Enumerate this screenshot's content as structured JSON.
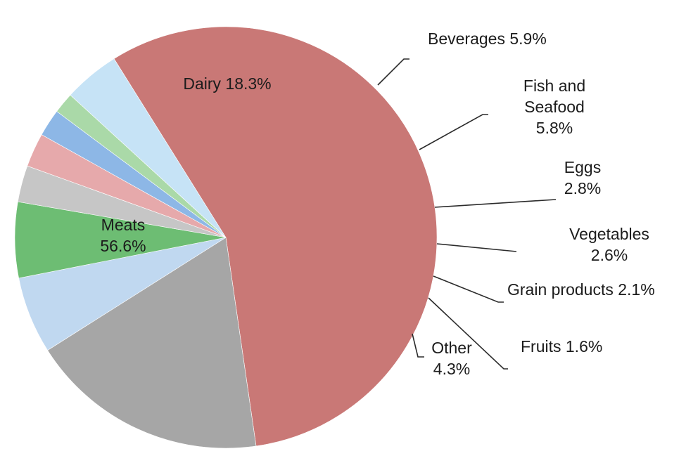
{
  "chart_data": {
    "type": "pie",
    "start_angle_deg": -122,
    "direction": "clockwise",
    "slices": [
      {
        "name": "Meats",
        "value": 56.6,
        "color": "#c97876",
        "label_lines": [
          "Meats",
          "56.6%"
        ]
      },
      {
        "name": "Dairy",
        "value": 18.3,
        "color": "#a6a6a6",
        "label_lines": [
          "Dairy 18.3%"
        ]
      },
      {
        "name": "Beverages",
        "value": 5.9,
        "color": "#c0d8f0",
        "label_lines": [
          "Beverages 5.9%"
        ]
      },
      {
        "name": "Fish and Seafood",
        "value": 5.8,
        "color": "#6dbd73",
        "label_lines": [
          "Fish and",
          "Seafood",
          "5.8%"
        ]
      },
      {
        "name": "Eggs",
        "value": 2.8,
        "color": "#c6c6c6",
        "label_lines": [
          "Eggs",
          "2.8%"
        ]
      },
      {
        "name": "Vegetables",
        "value": 2.6,
        "color": "#e6a9ab",
        "label_lines": [
          "Vegetables",
          "2.6%"
        ]
      },
      {
        "name": "Grain products",
        "value": 2.1,
        "color": "#8db7e6",
        "label_lines": [
          "Grain products 2.1%"
        ]
      },
      {
        "name": "Fruits",
        "value": 1.6,
        "color": "#aad9a8",
        "label_lines": [
          "Fruits 1.6%"
        ]
      },
      {
        "name": "Other",
        "value": 4.3,
        "color": "#c6e3f6",
        "label_lines": [
          "Other",
          "4.3%"
        ]
      }
    ]
  }
}
